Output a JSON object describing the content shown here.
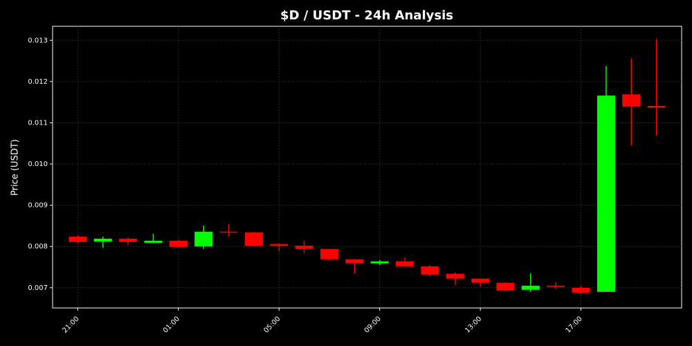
{
  "chart_data": {
    "type": "candlestick",
    "title": "$D / USDT - 24h Analysis",
    "y_label": "Price (USDT)",
    "categories": [
      "21:00",
      null,
      null,
      null,
      "01:00",
      null,
      null,
      null,
      "05:00",
      null,
      null,
      null,
      "09:00",
      null,
      null,
      null,
      "13:00",
      null,
      null,
      null,
      "17:00",
      null,
      null,
      null
    ],
    "open": [
      0.00824,
      0.00812,
      0.00819,
      0.00809,
      0.00814,
      0.008,
      0.00836,
      0.00834,
      0.00806,
      0.00802,
      0.00794,
      0.00769,
      0.00759,
      0.00764,
      0.00752,
      0.00734,
      0.00722,
      0.00712,
      0.00695,
      0.00705,
      0.007,
      0.0069,
      0.01169,
      0.01141
    ],
    "high": [
      0.00827,
      0.00824,
      0.00822,
      0.00831,
      0.00817,
      0.00851,
      0.00854,
      0.00836,
      0.00807,
      0.00814,
      0.00794,
      0.00769,
      0.00767,
      0.00774,
      0.00755,
      0.00737,
      0.00722,
      0.00713,
      0.00735,
      0.00713,
      0.00705,
      0.01238,
      0.01256,
      0.01303
    ],
    "low": [
      0.00809,
      0.00797,
      0.00804,
      0.00809,
      0.00799,
      0.00794,
      0.00824,
      0.008,
      0.00789,
      0.00784,
      0.00765,
      0.00734,
      0.00755,
      0.00752,
      0.00727,
      0.00707,
      0.00703,
      0.0069,
      0.0069,
      0.00697,
      0.00683,
      0.0069,
      0.01045,
      0.0107
    ],
    "close": [
      0.00811,
      0.00819,
      0.00811,
      0.00814,
      0.00799,
      0.00836,
      0.00834,
      0.00802,
      0.00802,
      0.00794,
      0.00769,
      0.00759,
      0.00764,
      0.00752,
      0.00732,
      0.00722,
      0.00712,
      0.00693,
      0.00705,
      0.00702,
      0.00688,
      0.01166,
      0.01139,
      0.01137
    ],
    "up_color": "#00ff00",
    "down_color": "#ff0000",
    "ylim": [
      0.00651,
      0.01334
    ],
    "yticks": [
      0.007,
      0.008,
      0.009,
      {
        "value": 0.01,
        "label": "0.010"
      },
      0.011,
      0.012,
      0.013
    ],
    "grid": true
  }
}
